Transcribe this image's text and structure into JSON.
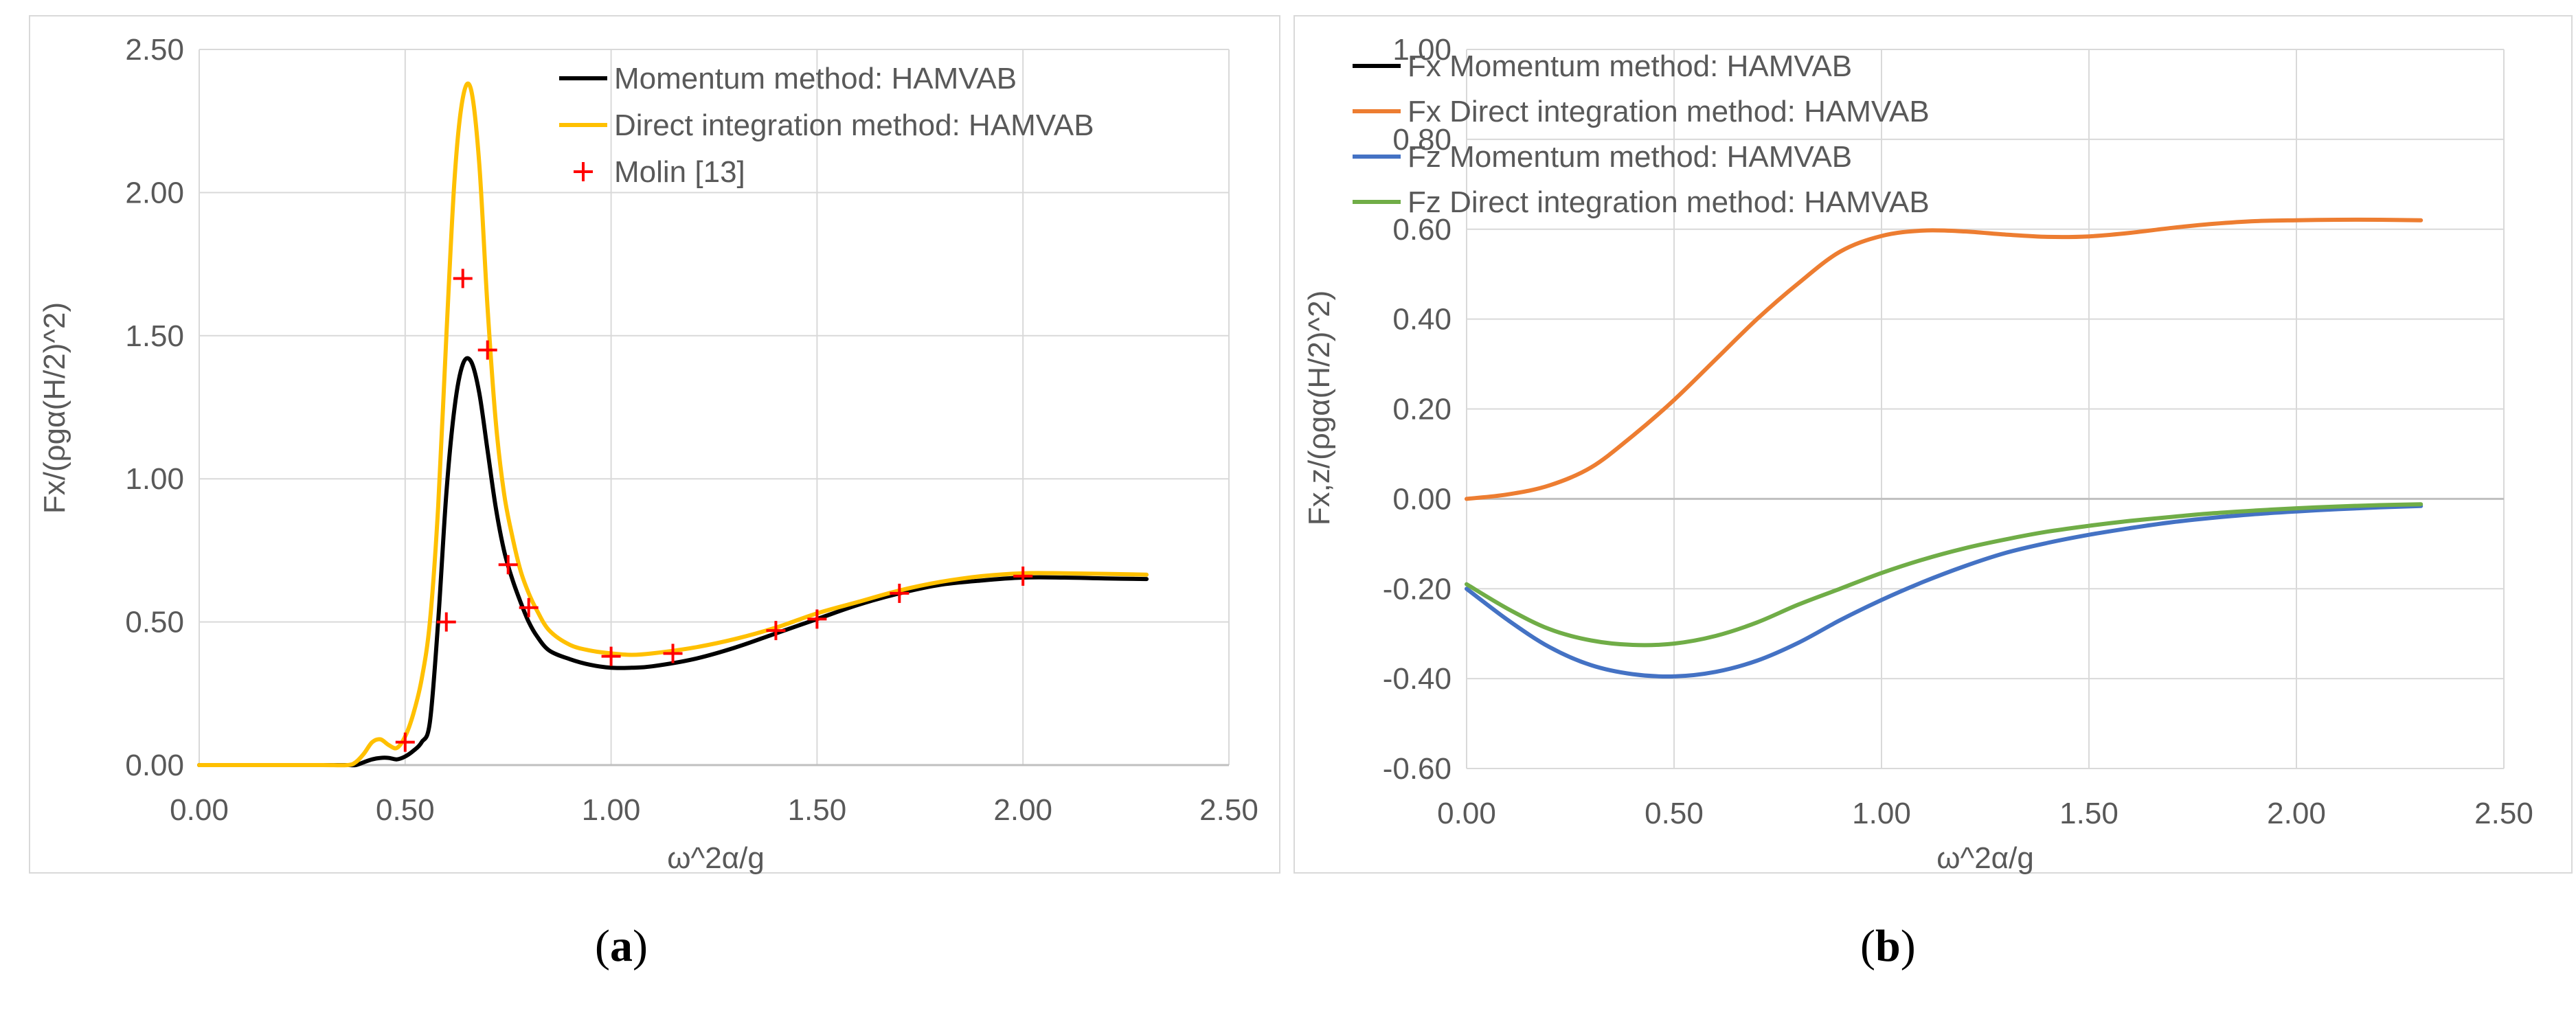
{
  "chart_data": [
    {
      "type": "line",
      "panel": "a",
      "caption_label": "a",
      "title": "",
      "xlabel": "ω^2α/g",
      "ylabel": "Fx/(ρgα(H/2)^2)",
      "xlim": [
        0,
        2.5
      ],
      "ylim": [
        0,
        2.5
      ],
      "xticks": [
        0,
        0.5,
        1.0,
        1.5,
        2.0,
        2.5
      ],
      "yticks": [
        0,
        0.5,
        1.0,
        1.5,
        2.0,
        2.5
      ],
      "xtick_labels": [
        "0.00",
        "0.50",
        "1.00",
        "1.50",
        "2.00",
        "2.50"
      ],
      "ytick_labels": [
        "0.00",
        "0.50",
        "1.00",
        "1.50",
        "2.00",
        "2.50"
      ],
      "grid": true,
      "legend_position": "top-right",
      "series": [
        {
          "name": "Momentum method: HAMVAB",
          "color": "#000000",
          "kind": "line",
          "x": [
            0,
            0.1,
            0.2,
            0.3,
            0.36,
            0.38,
            0.4,
            0.42,
            0.44,
            0.46,
            0.48,
            0.5,
            0.52,
            0.54,
            0.56,
            0.58,
            0.6,
            0.62,
            0.64,
            0.66,
            0.68,
            0.7,
            0.72,
            0.74,
            0.76,
            0.78,
            0.8,
            0.82,
            0.85,
            0.9,
            0.95,
            1.0,
            1.05,
            1.1,
            1.2,
            1.3,
            1.4,
            1.5,
            1.6,
            1.7,
            1.8,
            1.9,
            2.0,
            2.1,
            2.2,
            2.3
          ],
          "y": [
            0,
            0,
            0,
            0,
            0,
            0,
            0.01,
            0.02,
            0.025,
            0.025,
            0.02,
            0.03,
            0.05,
            0.08,
            0.15,
            0.5,
            0.95,
            1.25,
            1.4,
            1.41,
            1.3,
            1.1,
            0.9,
            0.75,
            0.65,
            0.57,
            0.5,
            0.45,
            0.4,
            0.37,
            0.35,
            0.34,
            0.34,
            0.345,
            0.37,
            0.41,
            0.46,
            0.51,
            0.56,
            0.6,
            0.63,
            0.645,
            0.655,
            0.655,
            0.652,
            0.65
          ]
        },
        {
          "name": "Direct integration method: HAMVAB",
          "color": "#ffc000",
          "kind": "line",
          "x": [
            0,
            0.1,
            0.2,
            0.3,
            0.36,
            0.38,
            0.4,
            0.42,
            0.44,
            0.46,
            0.48,
            0.5,
            0.52,
            0.54,
            0.56,
            0.58,
            0.6,
            0.62,
            0.64,
            0.66,
            0.68,
            0.7,
            0.72,
            0.74,
            0.76,
            0.78,
            0.8,
            0.82,
            0.85,
            0.9,
            0.95,
            1.0,
            1.05,
            1.1,
            1.2,
            1.3,
            1.4,
            1.5,
            1.6,
            1.7,
            1.8,
            1.9,
            2.0,
            2.1,
            2.2,
            2.3
          ],
          "y": [
            0,
            0,
            0,
            0,
            0,
            0.01,
            0.04,
            0.08,
            0.09,
            0.07,
            0.06,
            0.1,
            0.18,
            0.3,
            0.5,
            0.9,
            1.5,
            2.05,
            2.33,
            2.36,
            2.1,
            1.6,
            1.2,
            0.95,
            0.8,
            0.68,
            0.6,
            0.54,
            0.47,
            0.42,
            0.4,
            0.39,
            0.385,
            0.39,
            0.41,
            0.44,
            0.48,
            0.53,
            0.57,
            0.61,
            0.64,
            0.66,
            0.67,
            0.67,
            0.668,
            0.665
          ]
        },
        {
          "name": "Molin [13]",
          "color": "#ff0000",
          "kind": "marker",
          "x": [
            0.5,
            0.6,
            0.64,
            0.7,
            0.75,
            0.8,
            1.0,
            1.15,
            1.4,
            1.5,
            1.7,
            2.0
          ],
          "y": [
            0.08,
            0.5,
            1.7,
            1.45,
            0.7,
            0.55,
            0.38,
            0.39,
            0.47,
            0.51,
            0.6,
            0.66
          ]
        }
      ]
    },
    {
      "type": "line",
      "panel": "b",
      "caption_label": "b",
      "title": "",
      "xlabel": "ω^2α/g",
      "ylabel": "Fx,z/(ρgα(H/2)^2)",
      "xlim": [
        0,
        2.5
      ],
      "ylim": [
        -0.6,
        1.0
      ],
      "xticks": [
        0,
        0.5,
        1.0,
        1.5,
        2.0,
        2.5
      ],
      "yticks": [
        -0.6,
        -0.4,
        -0.2,
        0,
        0.2,
        0.4,
        0.6,
        0.8,
        1.0
      ],
      "xtick_labels": [
        "0.00",
        "0.50",
        "1.00",
        "1.50",
        "2.00",
        "2.50"
      ],
      "ytick_labels": [
        "-0.60",
        "-0.40",
        "-0.20",
        "0.00",
        "0.20",
        "0.40",
        "0.60",
        "0.80",
        "1.00"
      ],
      "grid": true,
      "legend_position": "top-left",
      "series": [
        {
          "name": "Fx Momentum method: HAMVAB",
          "color": "#000000",
          "kind": "line",
          "x": [],
          "y": []
        },
        {
          "name": "Fx Direct integration method: HAMVAB",
          "color": "#ed7d31",
          "kind": "line",
          "x": [
            0,
            0.1,
            0.2,
            0.3,
            0.4,
            0.5,
            0.6,
            0.7,
            0.8,
            0.9,
            1.0,
            1.1,
            1.2,
            1.3,
            1.4,
            1.5,
            1.6,
            1.7,
            1.8,
            1.9,
            2.0,
            2.1,
            2.2,
            2.3
          ],
          "y": [
            0,
            0.01,
            0.03,
            0.07,
            0.14,
            0.22,
            0.31,
            0.4,
            0.48,
            0.55,
            0.585,
            0.597,
            0.595,
            0.588,
            0.583,
            0.584,
            0.592,
            0.603,
            0.612,
            0.618,
            0.62,
            0.621,
            0.621,
            0.62
          ]
        },
        {
          "name": "Fz Momentum method: HAMVAB",
          "color": "#4472c4",
          "kind": "line",
          "x": [
            0,
            0.1,
            0.2,
            0.3,
            0.4,
            0.5,
            0.6,
            0.7,
            0.8,
            0.9,
            1.0,
            1.1,
            1.2,
            1.3,
            1.4,
            1.5,
            1.6,
            1.7,
            1.8,
            1.9,
            2.0,
            2.1,
            2.2,
            2.3
          ],
          "y": [
            -0.2,
            -0.27,
            -0.33,
            -0.37,
            -0.39,
            -0.395,
            -0.385,
            -0.36,
            -0.32,
            -0.27,
            -0.225,
            -0.185,
            -0.15,
            -0.12,
            -0.098,
            -0.08,
            -0.065,
            -0.052,
            -0.042,
            -0.034,
            -0.028,
            -0.023,
            -0.019,
            -0.016
          ]
        },
        {
          "name": "Fz Direct integration method: HAMVAB",
          "color": "#70ad47",
          "kind": "line",
          "x": [
            0,
            0.1,
            0.2,
            0.3,
            0.4,
            0.5,
            0.6,
            0.7,
            0.8,
            0.9,
            1.0,
            1.1,
            1.2,
            1.3,
            1.4,
            1.5,
            1.6,
            1.7,
            1.8,
            1.9,
            2.0,
            2.1,
            2.2,
            2.3
          ],
          "y": [
            -0.19,
            -0.245,
            -0.29,
            -0.315,
            -0.325,
            -0.322,
            -0.305,
            -0.275,
            -0.235,
            -0.2,
            -0.165,
            -0.135,
            -0.11,
            -0.09,
            -0.073,
            -0.06,
            -0.049,
            -0.04,
            -0.032,
            -0.026,
            -0.021,
            -0.017,
            -0.014,
            -0.012
          ]
        }
      ]
    }
  ]
}
